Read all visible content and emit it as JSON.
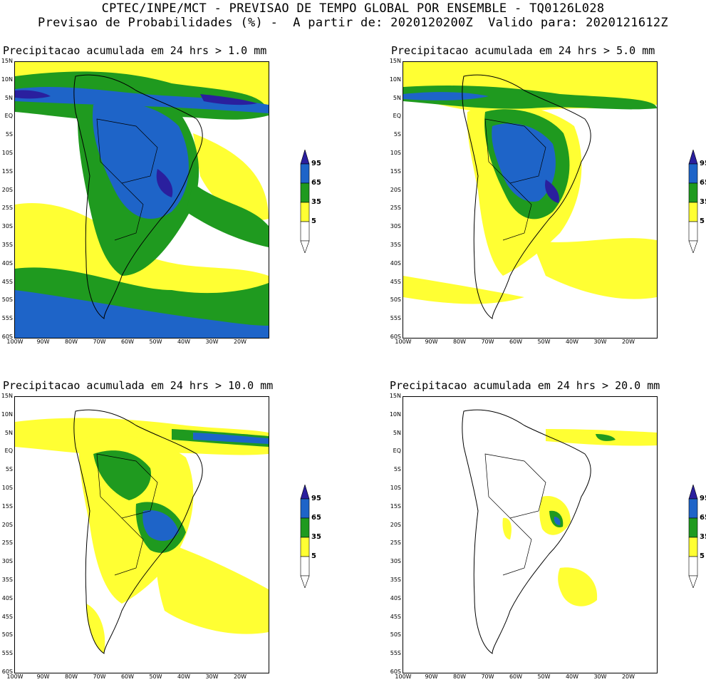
{
  "header": {
    "line1": "CPTEC/INPE/MCT - PREVISAO DE TEMPO GLOBAL POR ENSEMBLE - TQ0126L028",
    "line2": "Previsao de Probabilidades (%) -  A partir de: 2020120200Z  Valido para: 2020121612Z"
  },
  "axes": {
    "lat_labels": [
      "15N",
      "10N",
      "5N",
      "EQ",
      "5S",
      "10S",
      "15S",
      "20S",
      "25S",
      "30S",
      "35S",
      "40S",
      "45S",
      "50S",
      "55S",
      "60S"
    ],
    "lon_labels": [
      "100W",
      "90W",
      "80W",
      "70W",
      "60W",
      "50W",
      "40W",
      "30W",
      "20W"
    ]
  },
  "colorbar": {
    "levels": [
      "95",
      "65",
      "35",
      "5"
    ],
    "colors": {
      "c95": "#2a1f9e",
      "c65": "#1e64c8",
      "c35": "#1f9a1f",
      "c5": "#ffff33"
    }
  },
  "panels": [
    {
      "title": "Precipitacao acumulada em 24 hrs > 1.0 mm"
    },
    {
      "title": "Precipitacao acumulada em 24 hrs > 5.0 mm"
    },
    {
      "title": "Precipitacao acumulada em 24 hrs > 10.0 mm"
    },
    {
      "title": "Precipitacao acumulada em 24 hrs > 20.0 mm"
    }
  ],
  "colors": {
    "land_line": "#000000",
    "background": "#ffffff"
  }
}
